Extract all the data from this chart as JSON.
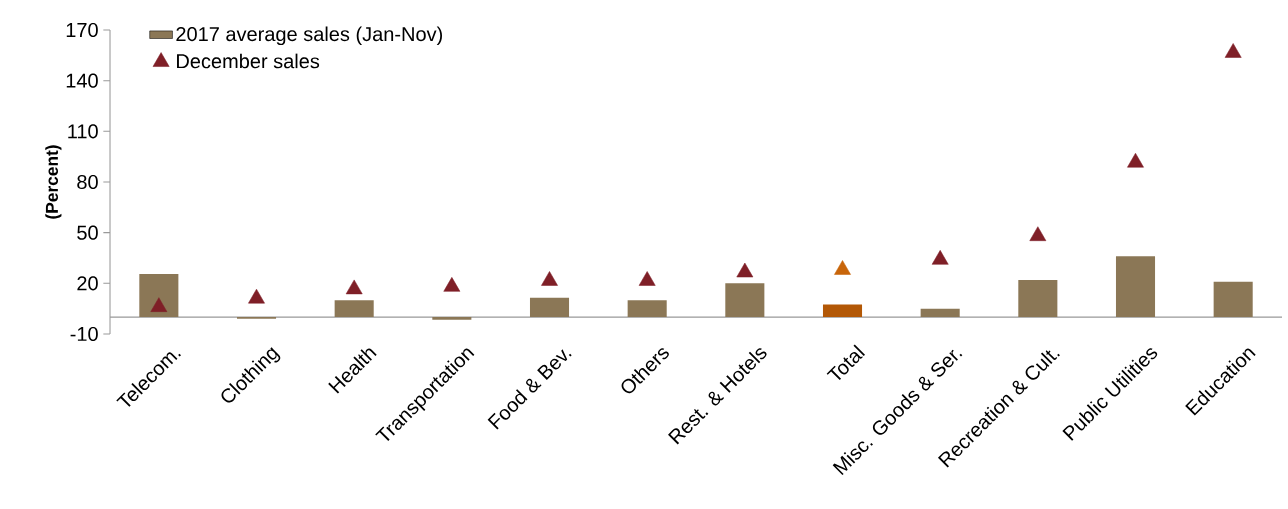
{
  "chart_data": {
    "type": "bar",
    "ylabel": "(Percent)",
    "categories": [
      "Telecom.",
      "Clothing",
      "Health",
      "Transportation",
      "Food & Bev.",
      "Others",
      "Rest. & Hotels",
      "Total",
      "Misc. Goods & Ser.",
      "Recreation & Cult.",
      "Public Utilities",
      "Education"
    ],
    "series": [
      {
        "name": "2017 average sales (Jan-Nov)",
        "color": "#8b7756",
        "colors": [
          "#8b7756",
          "#8b7756",
          "#8b7756",
          "#8b7756",
          "#8b7756",
          "#8b7756",
          "#8b7756",
          "#b35806",
          "#8b7756",
          "#8b7756",
          "#8b7756",
          "#8b7756"
        ],
        "values": [
          25.5,
          -1,
          10,
          -1.5,
          11.5,
          10,
          20,
          7.5,
          5,
          22,
          36,
          21
        ]
      },
      {
        "name": "December sales",
        "type": "scatter",
        "marker": "triangle",
        "color": "#7f1f27",
        "colors": [
          "#7f1f27",
          "#7f1f27",
          "#7f1f27",
          "#7f1f27",
          "#7f1f27",
          "#7f1f27",
          "#7f1f27",
          "#c8650a",
          "#7f1f27",
          "#7f1f27",
          "#7f1f27",
          "#7f1f27"
        ],
        "values": [
          6,
          11,
          16.5,
          18,
          21.5,
          21.5,
          26.5,
          28,
          34,
          48,
          91.5,
          156.5
        ]
      }
    ],
    "ylim": [
      -10,
      170
    ],
    "yticks": [
      -10,
      20,
      50,
      80,
      110,
      140,
      170
    ],
    "legend": "top left",
    "grid": false
  }
}
